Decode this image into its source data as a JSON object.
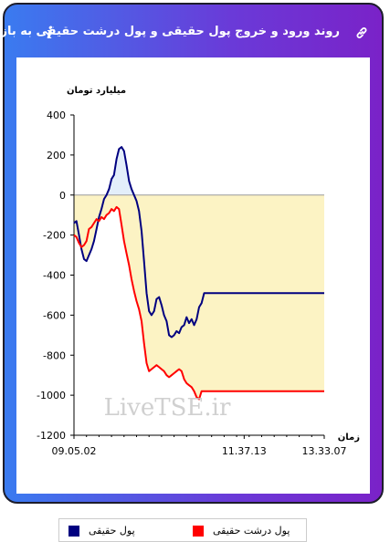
{
  "header": {
    "title": "روند ورود و خروج پول حقیقی و پول درشت حقیقی به بازار",
    "icons": [
      "link-icon",
      "info-icon"
    ]
  },
  "watermark": "LiveTSE.ir",
  "chart_data": {
    "type": "line",
    "ylabel": "میلیارد تومان",
    "xlabel": "زمان",
    "ylim": [
      -1200,
      400
    ],
    "yticks": [
      400,
      200,
      0,
      -200,
      -400,
      -600,
      -800,
      -1000,
      -1200
    ],
    "x_tick_labels": [
      "09.05.02",
      "11.37.13",
      "13.33.07"
    ],
    "grid": false,
    "legend_position": "bottom",
    "colors": {
      "fill_negative": "#fcf3c4",
      "fill_positive": "#e3eefa"
    },
    "series": [
      {
        "name": "پول حقیقی",
        "color": "#000080",
        "x": [
          0,
          1,
          2,
          3,
          4,
          5,
          6,
          7,
          8,
          9,
          10,
          11,
          12,
          13,
          14,
          15,
          16,
          17,
          18,
          19,
          20,
          21,
          22,
          23,
          24,
          25,
          26,
          27,
          28,
          29,
          30,
          31,
          32,
          33,
          34,
          35,
          36,
          37,
          38,
          39,
          40,
          41,
          42,
          43,
          44,
          45,
          46,
          47,
          48,
          49,
          50,
          51,
          52,
          53,
          54,
          55,
          56,
          57,
          58,
          59,
          60,
          61,
          62,
          63,
          64,
          65,
          66,
          67,
          68,
          69,
          70,
          71,
          72,
          73,
          74,
          75,
          76,
          77,
          78,
          79,
          80,
          81,
          82,
          83,
          84,
          85,
          86,
          87,
          88,
          89,
          90,
          91,
          92,
          93,
          94,
          95,
          96,
          97,
          98,
          99,
          100
        ],
        "values": [
          -140,
          -130,
          -200,
          -270,
          -320,
          -330,
          -300,
          -270,
          -230,
          -170,
          -110,
          -70,
          -20,
          0,
          30,
          80,
          100,
          180,
          230,
          240,
          220,
          150,
          70,
          30,
          0,
          -30,
          -80,
          -180,
          -330,
          -490,
          -580,
          -600,
          -580,
          -520,
          -510,
          -550,
          -600,
          -630,
          -700,
          -710,
          -700,
          -680,
          -690,
          -660,
          -650,
          -610,
          -640,
          -620,
          -650,
          -620,
          -560,
          -540,
          -490,
          -490,
          -490,
          -490,
          -490,
          -490,
          -490,
          -490,
          -490,
          -490,
          -490,
          -490,
          -490,
          -490,
          -490,
          -490,
          -490,
          -490,
          -490,
          -490,
          -490,
          -490,
          -490,
          -490,
          -490,
          -490,
          -490,
          -490,
          -490,
          -490,
          -490,
          -490,
          -490,
          -490,
          -490,
          -490,
          -490,
          -490,
          -490,
          -490,
          -490,
          -490,
          -490,
          -490,
          -490,
          -490,
          -490,
          -490,
          -490
        ]
      },
      {
        "name": "پول درشت حقیقی",
        "color": "#ff0000",
        "x": [
          0,
          1,
          2,
          3,
          4,
          5,
          6,
          7,
          8,
          9,
          10,
          11,
          12,
          13,
          14,
          15,
          16,
          17,
          18,
          19,
          20,
          21,
          22,
          23,
          24,
          25,
          26,
          27,
          28,
          29,
          30,
          31,
          32,
          33,
          34,
          35,
          36,
          37,
          38,
          39,
          40,
          41,
          42,
          43,
          44,
          45,
          46,
          47,
          48,
          49,
          50,
          51,
          52,
          53,
          54,
          55,
          56,
          57,
          58,
          59,
          60,
          61,
          62,
          63,
          64,
          65,
          66,
          67,
          68,
          69,
          70,
          71,
          72,
          73,
          74,
          75,
          76,
          77,
          78,
          79,
          80,
          81,
          82,
          83,
          84,
          85,
          86,
          87,
          88,
          89,
          90,
          91,
          92,
          93,
          94,
          95,
          96,
          97,
          98,
          99,
          100
        ],
        "values": [
          -200,
          -210,
          -240,
          -260,
          -250,
          -230,
          -170,
          -160,
          -140,
          -120,
          -130,
          -110,
          -120,
          -100,
          -90,
          -70,
          -80,
          -60,
          -70,
          -150,
          -230,
          -290,
          -350,
          -420,
          -480,
          -530,
          -570,
          -630,
          -740,
          -840,
          -880,
          -870,
          -860,
          -850,
          -860,
          -870,
          -880,
          -900,
          -910,
          -900,
          -890,
          -880,
          -870,
          -880,
          -920,
          -940,
          -950,
          -960,
          -980,
          -1010,
          -1020,
          -980,
          -980,
          -980,
          -980,
          -980,
          -980,
          -980,
          -980,
          -980,
          -980,
          -980,
          -980,
          -980,
          -980,
          -980,
          -980,
          -980,
          -980,
          -980,
          -980,
          -980,
          -980,
          -980,
          -980,
          -980,
          -980,
          -980,
          -980,
          -980,
          -980,
          -980,
          -980,
          -980,
          -980,
          -980,
          -980,
          -980,
          -980,
          -980,
          -980,
          -980,
          -980,
          -980,
          -980,
          -980,
          -980,
          -980,
          -980,
          -980,
          -980
        ]
      }
    ]
  }
}
